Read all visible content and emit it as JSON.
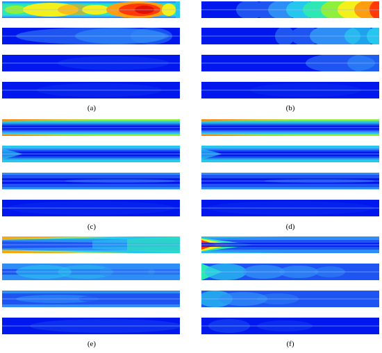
{
  "figure": {
    "captions": [
      "(a)",
      "(b)",
      "(c)",
      "(d)",
      "(e)",
      "(f)"
    ]
  },
  "colormap": {
    "background": "#0018ee",
    "levels": [
      "#0018ee",
      "#1e55f2",
      "#2f8ef5",
      "#27c6ee",
      "#2ee8b4",
      "#8ef03a",
      "#f4f01c",
      "#ff9d10",
      "#ff3a06",
      "#d60000"
    ],
    "centerline": "#9db8ff"
  }
}
